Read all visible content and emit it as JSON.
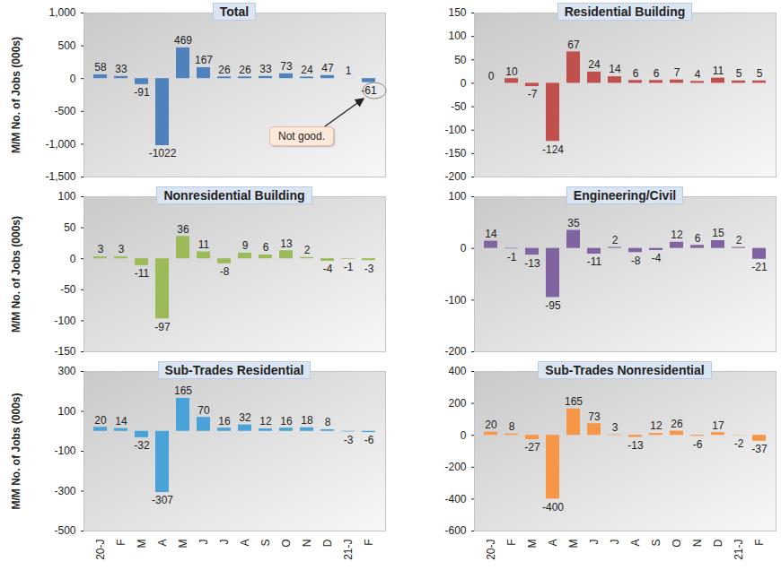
{
  "chart_data": [
    {
      "type": "bar",
      "title": "Total",
      "ylabel": "M/M No. of Jobs (000s)",
      "categories": [
        "20-J",
        "F",
        "M",
        "A",
        "M",
        "J",
        "J",
        "A",
        "S",
        "O",
        "N",
        "D",
        "21-J",
        "F"
      ],
      "values": [
        58,
        33,
        -91,
        -1022,
        469,
        167,
        26,
        26,
        33,
        73,
        24,
        47,
        1,
        -61
      ],
      "color": "#4f81bd",
      "ylim": [
        -1500,
        1000
      ],
      "yticks": [
        {
          "value": -1500,
          "label": "-1,500"
        },
        {
          "value": -1000,
          "label": "-1,000"
        },
        -500,
        0,
        500,
        {
          "value": 1000,
          "label": "1,000"
        }
      ],
      "data_labels": true,
      "tick_labels": "y",
      "annotation": "Not good."
    },
    {
      "type": "bar",
      "title": "Residential Building",
      "categories": [
        "20-J",
        "F",
        "M",
        "A",
        "M",
        "J",
        "J",
        "A",
        "S",
        "O",
        "N",
        "D",
        "21-J",
        "F"
      ],
      "values": [
        0,
        10,
        -7,
        -124,
        67,
        24,
        14,
        6,
        6,
        7,
        4,
        11,
        5,
        5
      ],
      "color": "#c0504d",
      "ylim": [
        -200,
        150
      ],
      "yticks": [
        -200,
        -150,
        -100,
        -50,
        0,
        50,
        100,
        150
      ],
      "data_labels": true,
      "tick_labels": "y"
    },
    {
      "type": "bar",
      "title": "Nonresidential Building",
      "ylabel": "M/M No. of Jobs (000s)",
      "categories": [
        "20-J",
        "F",
        "M",
        "A",
        "M",
        "J",
        "J",
        "A",
        "S",
        "O",
        "N",
        "D",
        "21-J",
        "F"
      ],
      "values": [
        3,
        3,
        -11,
        -97,
        36,
        11,
        -8,
        9,
        6,
        13,
        2,
        -4,
        -1,
        -3
      ],
      "color": "#9bbb59",
      "ylim": [
        -150,
        100
      ],
      "yticks": [
        -150,
        -100,
        -50,
        0,
        50,
        100
      ],
      "data_labels": true,
      "tick_labels": "y"
    },
    {
      "type": "bar",
      "title": "Engineering/Civil",
      "categories": [
        "20-J",
        "F",
        "M",
        "A",
        "M",
        "J",
        "J",
        "A",
        "S",
        "O",
        "N",
        "D",
        "21-J",
        "F"
      ],
      "values": [
        14,
        -1,
        -13,
        -95,
        35,
        -11,
        2,
        -8,
        -4,
        12,
        6,
        15,
        2,
        -21
      ],
      "color": "#8064a2",
      "ylim": [
        -200,
        100
      ],
      "yticks": [
        -200,
        -100,
        0,
        100
      ],
      "data_labels": true,
      "tick_labels": "y"
    },
    {
      "type": "bar",
      "title": "Sub-Trades Residential",
      "ylabel": "M/M No. of Jobs (000s)",
      "categories": [
        "20-J",
        "F",
        "M",
        "A",
        "M",
        "J",
        "J",
        "A",
        "S",
        "O",
        "N",
        "D",
        "21-J",
        "F"
      ],
      "values": [
        20,
        14,
        -32,
        -307,
        165,
        70,
        16,
        32,
        12,
        16,
        18,
        8,
        -3,
        -6
      ],
      "color": "#4aa3d8",
      "ylim": [
        -500,
        300
      ],
      "yticks": [
        -500,
        -300,
        -100,
        100,
        300
      ],
      "data_labels": true
    },
    {
      "type": "bar",
      "title": "Sub-Trades Nonresidential",
      "categories": [
        "20-J",
        "F",
        "M",
        "A",
        "M",
        "J",
        "J",
        "A",
        "S",
        "O",
        "N",
        "D",
        "21-J",
        "F"
      ],
      "values": [
        20,
        8,
        -27,
        -400,
        165,
        73,
        3,
        -13,
        12,
        26,
        -6,
        17,
        -2,
        -37
      ],
      "color": "#f79646",
      "ylim": [
        -600,
        400
      ],
      "yticks": [
        -600,
        -400,
        -200,
        0,
        200,
        400
      ],
      "data_labels": true
    }
  ]
}
